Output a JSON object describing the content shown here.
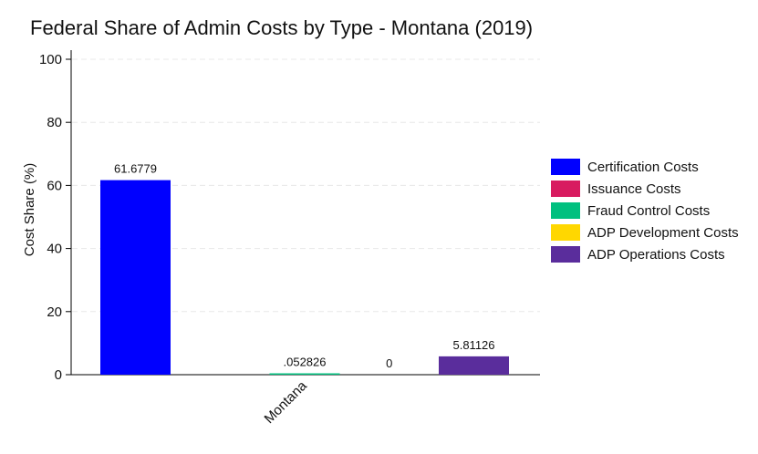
{
  "chart_data": {
    "type": "bar",
    "title": "Federal Share of Admin Costs by Type - Montana (2019)",
    "xlabel": "",
    "ylabel": "Cost Share (%)",
    "categories": [
      "Montana"
    ],
    "ylim": [
      0,
      100
    ],
    "yticks": [
      0,
      20,
      40,
      60,
      80,
      100
    ],
    "grid": true,
    "legend_position": "right",
    "series": [
      {
        "name": "Certification Costs",
        "color": "#0000ff",
        "values": [
          61.6779
        ],
        "label": "61.6779"
      },
      {
        "name": "Issuance Costs",
        "color": "#d81b60",
        "values": [
          0
        ],
        "label": ""
      },
      {
        "name": "Fraud Control Costs",
        "color": "#00c07f",
        "values": [
          0.052826
        ],
        "label": ".052826"
      },
      {
        "name": "ADP Development Costs",
        "color": "#ffd700",
        "values": [
          0
        ],
        "label": "0"
      },
      {
        "name": "ADP Operations Costs",
        "color": "#5a2d9c",
        "values": [
          5.81126
        ],
        "label": "5.81126"
      }
    ]
  }
}
